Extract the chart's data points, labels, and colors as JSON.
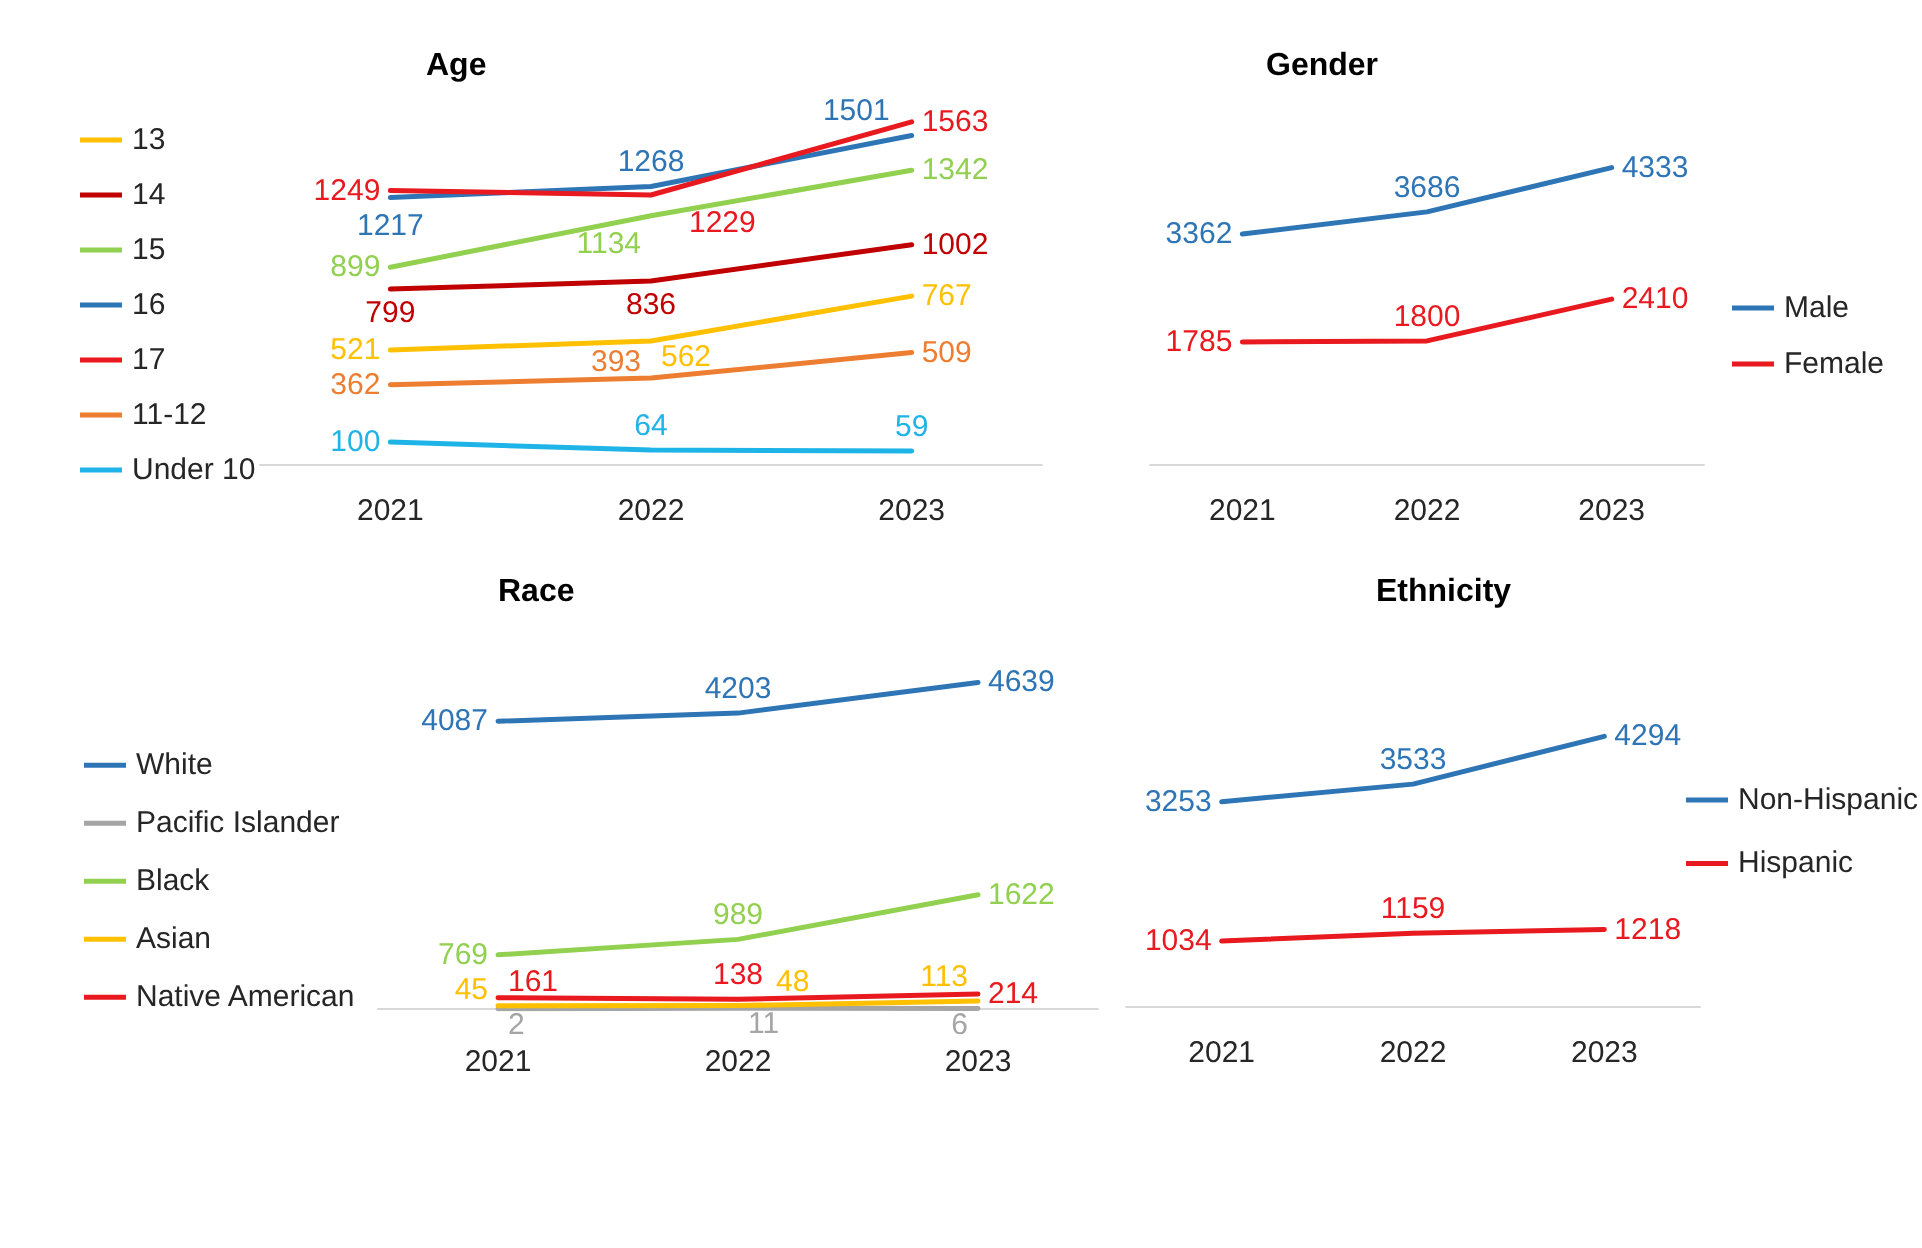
{
  "chart_data": [
    {
      "type": "line",
      "title": "Age",
      "categories": [
        "2021",
        "2022",
        "2023"
      ],
      "series": [
        {
          "name": "13",
          "color": "#ffc000",
          "values": [
            521,
            562,
            767
          ]
        },
        {
          "name": "14",
          "color": "#c00000",
          "values": [
            799,
            836,
            1002
          ]
        },
        {
          "name": "15",
          "color": "#92d050",
          "values": [
            899,
            1134,
            1342
          ]
        },
        {
          "name": "16",
          "color": "#2e75b6",
          "values": [
            1217,
            1268,
            1501
          ]
        },
        {
          "name": "17",
          "color": "#e8191f",
          "values": [
            1249,
            1229,
            1563
          ]
        },
        {
          "name": "11-12",
          "color": "#ed7d31",
          "values": [
            362,
            393,
            509
          ]
        },
        {
          "name": "Under 10",
          "color": "#1fb4e8",
          "values": [
            100,
            64,
            59
          ]
        }
      ],
      "data_labels": true,
      "legend": "left",
      "tick_labels": "x",
      "marker": "none"
    },
    {
      "type": "line",
      "title": "Gender",
      "categories": [
        "2021",
        "2022",
        "2023"
      ],
      "series": [
        {
          "name": "Male",
          "color": "#2e75b6",
          "values": [
            3362,
            3686,
            4333
          ]
        },
        {
          "name": "Female",
          "color": "#e8191f",
          "values": [
            1785,
            1800,
            2410
          ]
        }
      ],
      "data_labels": true,
      "legend": "right",
      "tick_labels": "x",
      "marker": "none"
    },
    {
      "type": "line",
      "title": "Race",
      "categories": [
        "2021",
        "2022",
        "2023"
      ],
      "series": [
        {
          "name": "White",
          "color": "#2e75b6",
          "values": [
            4087,
            4203,
            4639
          ]
        },
        {
          "name": "Pacific Islander",
          "color": "#a5a5a5",
          "values": [
            2,
            11,
            6
          ]
        },
        {
          "name": "Black",
          "color": "#92d050",
          "values": [
            769,
            989,
            1622
          ]
        },
        {
          "name": "Asian",
          "color": "#ffc000",
          "values": [
            45,
            48,
            113
          ]
        },
        {
          "name": "Native American",
          "color": "#e8191f",
          "values": [
            161,
            138,
            214
          ]
        }
      ],
      "data_labels": true,
      "legend": "left",
      "tick_labels": "x",
      "marker": "none"
    },
    {
      "type": "line",
      "title": "Ethnicity",
      "categories": [
        "2021",
        "2022",
        "2023"
      ],
      "series": [
        {
          "name": "Non-Hispanic",
          "color": "#2e75b6",
          "values": [
            3253,
            3533,
            4294
          ]
        },
        {
          "name": "Hispanic",
          "color": "#e8191f",
          "values": [
            1034,
            1159,
            1218
          ]
        }
      ],
      "data_labels": true,
      "legend": "right",
      "tick_labels": "x",
      "marker": "none"
    }
  ]
}
